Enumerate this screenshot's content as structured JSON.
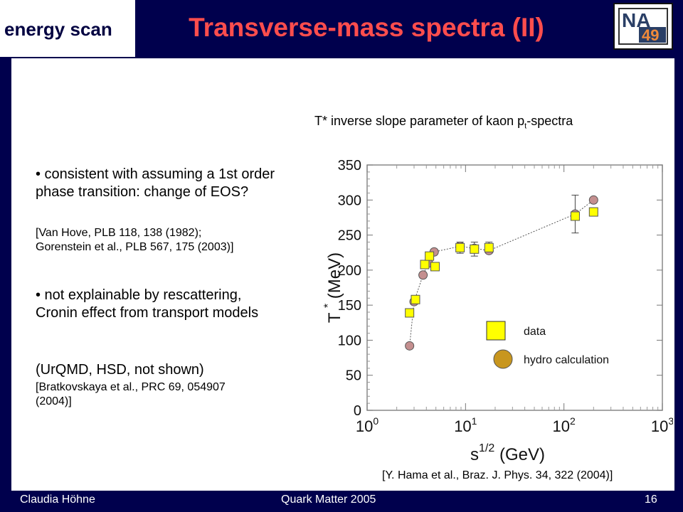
{
  "header": {
    "section_tag": "energy scan",
    "title": "Transverse-mass spectra (II)",
    "logo": {
      "line1": "NA",
      "line2": "49"
    }
  },
  "chart_caption": {
    "main": "T* inverse slope parameter of kaon p",
    "subscript": "t",
    "suffix": "-spectra"
  },
  "bullets": [
    {
      "text": "• consistent with assuming a 1st order phase transition: change of EOS?",
      "ref_lines": [
        "[Van Hove, PLB 118, 138 (1982);",
        "Gorenstein et al., PLB 567, 175 (2003)]"
      ]
    },
    {
      "text": "• not explainable by rescattering, Cronin effect from transport models",
      "note": "(UrQMD, HSD, not shown)",
      "ref_lines": [
        "[Bratkovskaya et al., PRC 69, 054907",
        "(2004)]"
      ]
    }
  ],
  "citation": "[Y. Hama et al., Braz. J. Phys. 34, 322 (2004)]",
  "footer": {
    "author": "Claudia Höhne",
    "event": "Quark Matter 2005",
    "page": "16"
  },
  "colors": {
    "background": "#00004d",
    "title": "#ff4d4d",
    "data_marker": "#ffff00",
    "hydro_marker": "#c48f8f"
  },
  "chart_data": {
    "type": "scatter",
    "x_scale": "log",
    "xlim": [
      1,
      1000
    ],
    "ylim": [
      0,
      350
    ],
    "y_ticks": [
      0,
      50,
      100,
      150,
      200,
      250,
      300,
      350
    ],
    "x_ticks": [
      {
        "base": "10",
        "exp": "0"
      },
      {
        "base": "10",
        "exp": "1"
      },
      {
        "base": "10",
        "exp": "2"
      },
      {
        "base": "10",
        "exp": "3"
      }
    ],
    "ylabel": {
      "main": "T",
      "sup": "*",
      "unit": "(MeV)"
    },
    "xlabel": {
      "main": "s",
      "sup": "1/2",
      "unit": "(GeV)"
    },
    "legend_position": "bottom-right",
    "series": [
      {
        "name": "data",
        "marker": "square",
        "points": [
          {
            "x": 2.7,
            "y": 139
          },
          {
            "x": 3.1,
            "y": 158
          },
          {
            "x": 3.85,
            "y": 208
          },
          {
            "x": 4.3,
            "y": 220
          },
          {
            "x": 4.9,
            "y": 205
          },
          {
            "x": 8.8,
            "y": 232,
            "err": 8
          },
          {
            "x": 12.3,
            "y": 230,
            "err": 10
          },
          {
            "x": 17.3,
            "y": 232,
            "err": 8
          },
          {
            "x": 130,
            "y": 277
          },
          {
            "x": 200,
            "y": 283
          }
        ]
      },
      {
        "name": "hydro calculation",
        "marker": "circle",
        "points": [
          {
            "x": 2.7,
            "y": 92
          },
          {
            "x": 3.0,
            "y": 155
          },
          {
            "x": 3.7,
            "y": 193
          },
          {
            "x": 4.2,
            "y": 210
          },
          {
            "x": 4.8,
            "y": 226
          },
          {
            "x": 8.8,
            "y": 234
          },
          {
            "x": 12.3,
            "y": 231
          },
          {
            "x": 17.3,
            "y": 228
          },
          {
            "x": 130,
            "y": 280,
            "err": 27
          },
          {
            "x": 200,
            "y": 300
          }
        ]
      }
    ]
  }
}
